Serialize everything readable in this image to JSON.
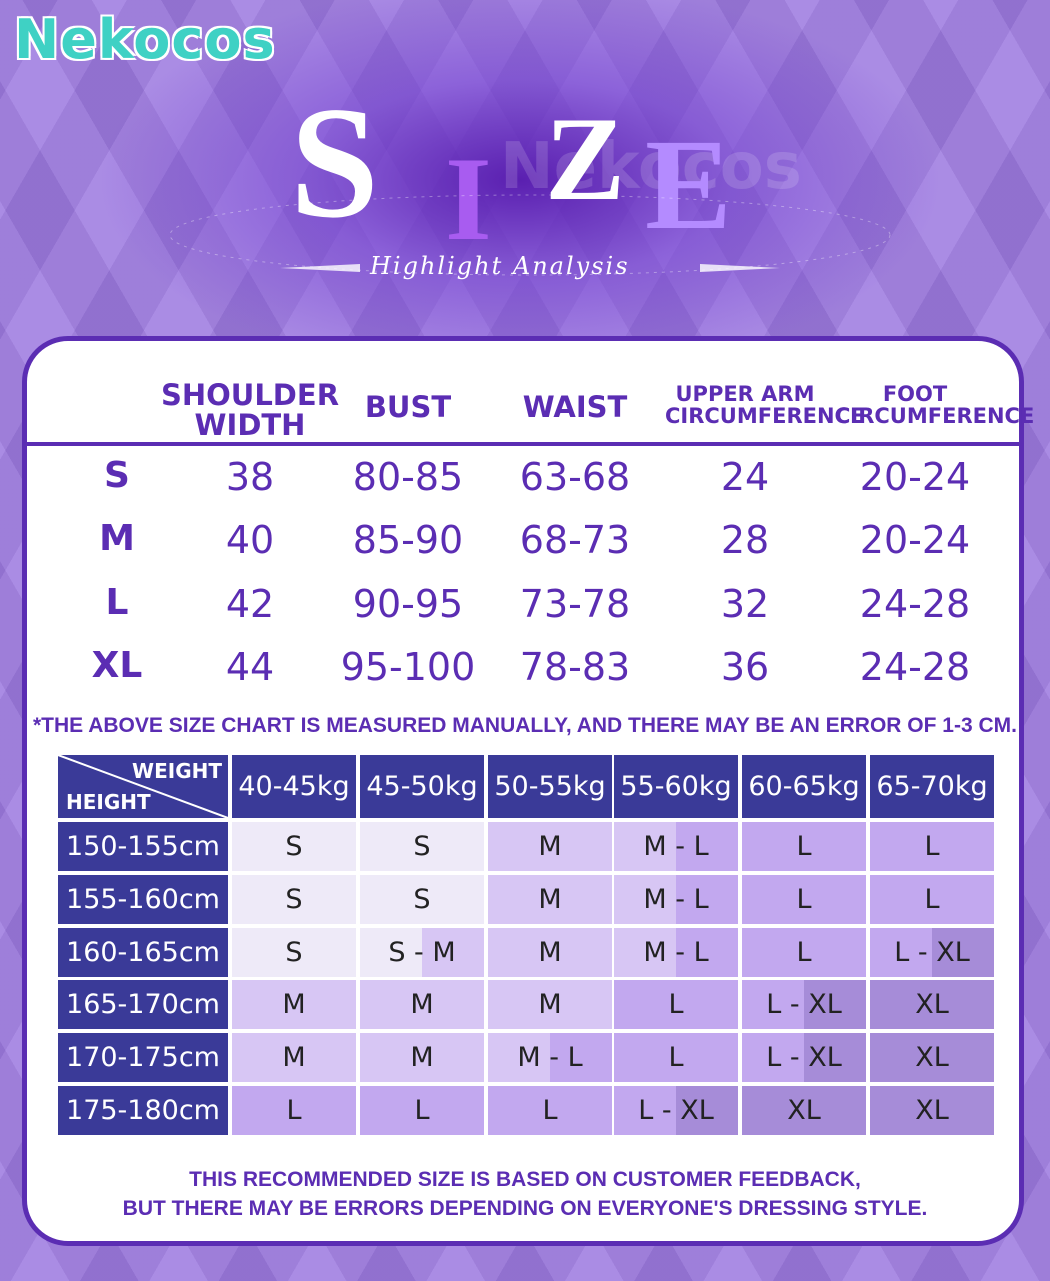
{
  "brand": "Nekocos",
  "title_letters": [
    "S",
    "I",
    "Z",
    "E"
  ],
  "subtitle": "Highlight Analysis",
  "size_table": {
    "headers": [
      "SHOULDER WIDTH",
      "BUST",
      "WAIST",
      "UPPER ARM CIRCUMFERENCE",
      "FOOT CIRCUMFERENCE"
    ],
    "rows": [
      [
        "S",
        38,
        "80-85",
        "63-68",
        24,
        "20-24"
      ],
      [
        "M",
        40,
        "85-90",
        "68-73",
        28,
        "20-24"
      ],
      [
        "L",
        42,
        "90-95",
        "73-78",
        32,
        "24-28"
      ],
      [
        "XL",
        44,
        "95-100",
        "78-83",
        36,
        "24-28"
      ]
    ]
  },
  "size_note": "*THE ABOVE SIZE CHART IS MEASURED MANUALLY, AND THERE MAY BE AN ERROR OF 1-3 CM.",
  "weight_table": {
    "corner_top": "WEIGHT",
    "corner_bottom": "HEIGHT",
    "columns": [
      "40-45kg",
      "45-50kg",
      "50-55kg",
      "55-60kg",
      "60-65kg",
      "65-70kg"
    ],
    "rows": [
      {
        "height": "150-155cm",
        "cells": [
          "S",
          "S",
          "M",
          "M - L",
          "L",
          "L"
        ]
      },
      {
        "height": "155-160cm",
        "cells": [
          "S",
          "S",
          "M",
          "M - L",
          "L",
          "L"
        ]
      },
      {
        "height": "160-165cm",
        "cells": [
          "S",
          "S - M",
          "M",
          "M - L",
          "L",
          "L - XL"
        ]
      },
      {
        "height": "165-170cm",
        "cells": [
          "M",
          "M",
          "M",
          "L",
          "L - XL",
          "XL"
        ]
      },
      {
        "height": "170-175cm",
        "cells": [
          "M",
          "M",
          "M - L",
          "L",
          "L - XL",
          "XL"
        ]
      },
      {
        "height": "175-180cm",
        "cells": [
          "L",
          "L",
          "L",
          "L - XL",
          "XL",
          "XL"
        ]
      }
    ]
  },
  "footer_note": [
    "THIS RECOMMENDED SIZE IS BASED ON CUSTOMER FEEDBACK,",
    "BUT THERE MAY BE ERRORS DEPENDING ON EVERYONE'S DRESSING STYLE."
  ]
}
